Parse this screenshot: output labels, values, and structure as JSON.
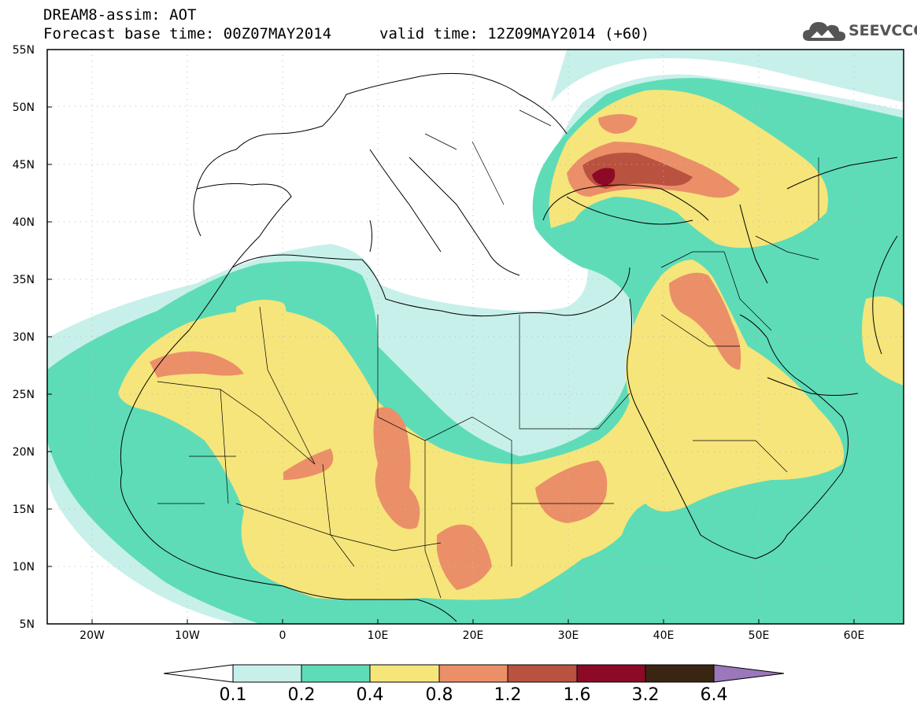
{
  "header": {
    "line1": "DREAM8-assim: AOT",
    "line2": "Forecast base time: 00Z07MAY2014",
    "line3": "valid time: 12Z09MAY2014 (+60)"
  },
  "logo": {
    "text": "SEEVCCC",
    "icon": "cloud-icon"
  },
  "axes": {
    "y_ticks": [
      "55N",
      "50N",
      "45N",
      "40N",
      "35N",
      "30N",
      "25N",
      "20N",
      "15N",
      "10N",
      "5N"
    ],
    "x_ticks": [
      "20W",
      "10W",
      "0",
      "10E",
      "20E",
      "30E",
      "40E",
      "50E",
      "60E"
    ]
  },
  "colorbar": {
    "labels": [
      "0.1",
      "0.2",
      "0.4",
      "0.8",
      "1.2",
      "1.6",
      "3.2",
      "6.4"
    ],
    "colors": [
      "#c8f0eb",
      "#5edcb8",
      "#f6e57a",
      "#eb8f69",
      "#b9523f",
      "#8d0a26",
      "#3a2512",
      "#9a78bb"
    ]
  },
  "legend_colors": {
    "low": "#c8f0eb",
    "mid": "#5edcb8",
    "yellow": "#f6e57a",
    "orange": "#eb8f69",
    "brown": "#b9523f",
    "maroon": "#8d0a26"
  }
}
